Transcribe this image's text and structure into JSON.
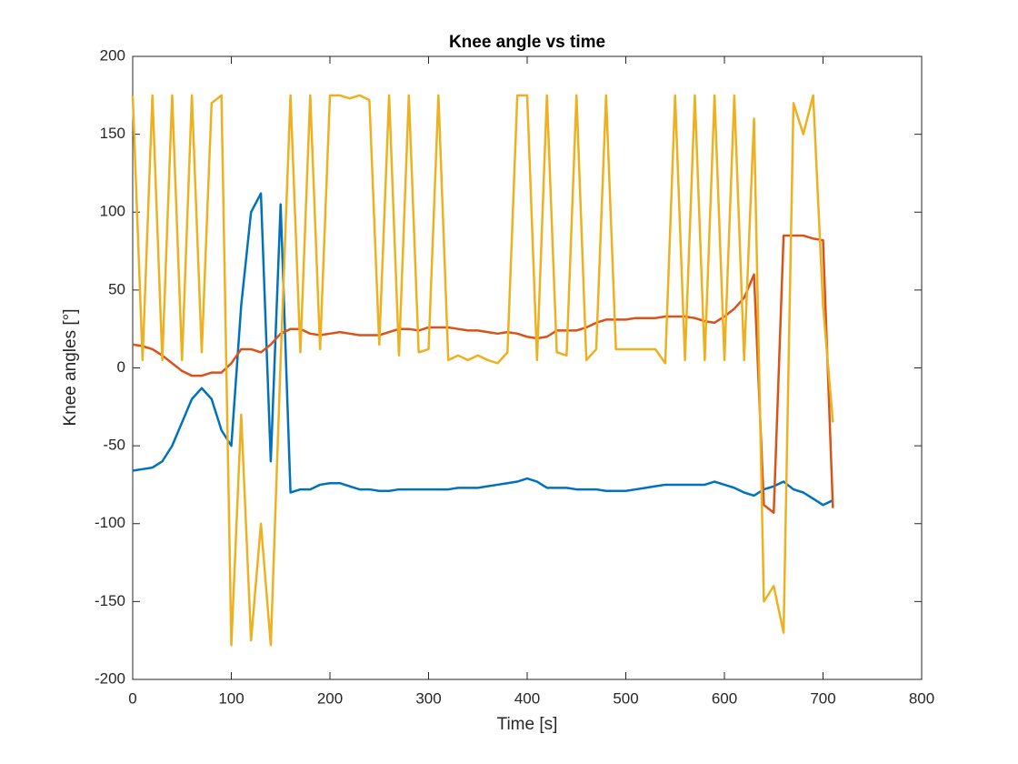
{
  "chart_data": {
    "type": "line",
    "title": "Knee angle vs time",
    "xlabel": "Time [s]",
    "ylabel": "Knee angles [°]",
    "x": [
      0,
      10,
      20,
      30,
      40,
      50,
      60,
      70,
      80,
      90,
      100,
      110,
      120,
      130,
      140,
      150,
      160,
      170,
      180,
      190,
      200,
      210,
      220,
      230,
      240,
      250,
      260,
      270,
      280,
      290,
      300,
      310,
      320,
      330,
      340,
      350,
      360,
      370,
      380,
      390,
      400,
      410,
      420,
      430,
      440,
      450,
      460,
      470,
      480,
      490,
      500,
      510,
      520,
      530,
      540,
      550,
      560,
      570,
      580,
      590,
      600,
      610,
      620,
      630,
      640,
      650,
      660,
      670,
      680,
      690,
      700,
      710
    ],
    "series": [
      {
        "color": "#0072bd",
        "values": [
          -66,
          -65,
          -64,
          -60,
          -50,
          -35,
          -20,
          -13,
          -20,
          -40,
          -50,
          40,
          100,
          112,
          -60,
          105,
          -80,
          -78,
          -78,
          -75,
          -74,
          -74,
          -76,
          -78,
          -78,
          -79,
          -79,
          -78,
          -78,
          -78,
          -78,
          -78,
          -78,
          -77,
          -77,
          -77,
          -76,
          -75,
          -74,
          -73,
          -71,
          -73,
          -77,
          -77,
          -77,
          -78,
          -78,
          -78,
          -79,
          -79,
          -79,
          -78,
          -77,
          -76,
          -75,
          -75,
          -75,
          -75,
          -75,
          -73,
          -75,
          -77,
          -80,
          -82,
          -78,
          -76,
          -73,
          -78,
          -80,
          -84,
          -88,
          -85
        ]
      },
      {
        "color": "#d95319",
        "values": [
          15,
          14,
          12,
          8,
          3,
          -2,
          -5,
          -5,
          -3,
          -3,
          3,
          12,
          12,
          10,
          15,
          22,
          25,
          25,
          22,
          21,
          22,
          23,
          22,
          21,
          21,
          21,
          23,
          25,
          25,
          24,
          26,
          26,
          26,
          25,
          24,
          24,
          23,
          22,
          23,
          22,
          20,
          19,
          20,
          24,
          24,
          24,
          26,
          29,
          31,
          31,
          31,
          32,
          32,
          32,
          33,
          33,
          33,
          32,
          30,
          29,
          33,
          38,
          45,
          60,
          -88,
          -93,
          85,
          85,
          85,
          83,
          82,
          -90
        ]
      },
      {
        "color": "#edb120",
        "values": [
          175,
          5,
          175,
          5,
          175,
          5,
          175,
          10,
          170,
          175,
          -178,
          -30,
          -175,
          -100,
          -178,
          5,
          175,
          10,
          175,
          12,
          175,
          175,
          173,
          175,
          172,
          15,
          175,
          8,
          175,
          10,
          12,
          175,
          5,
          8,
          5,
          8,
          5,
          3,
          10,
          175,
          175,
          5,
          175,
          10,
          8,
          175,
          5,
          12,
          175,
          12,
          12,
          12,
          12,
          12,
          3,
          175,
          5,
          175,
          5,
          175,
          5,
          175,
          5,
          160,
          -150,
          -140,
          -170,
          170,
          150,
          175,
          40,
          -35
        ]
      }
    ],
    "xlim": [
      0,
      800
    ],
    "xticks": [
      0,
      100,
      200,
      300,
      400,
      500,
      600,
      700,
      800
    ],
    "ylim": [
      -200,
      200
    ],
    "yticks": [
      -200,
      -150,
      -100,
      -50,
      0,
      50,
      100,
      150,
      200
    ]
  }
}
